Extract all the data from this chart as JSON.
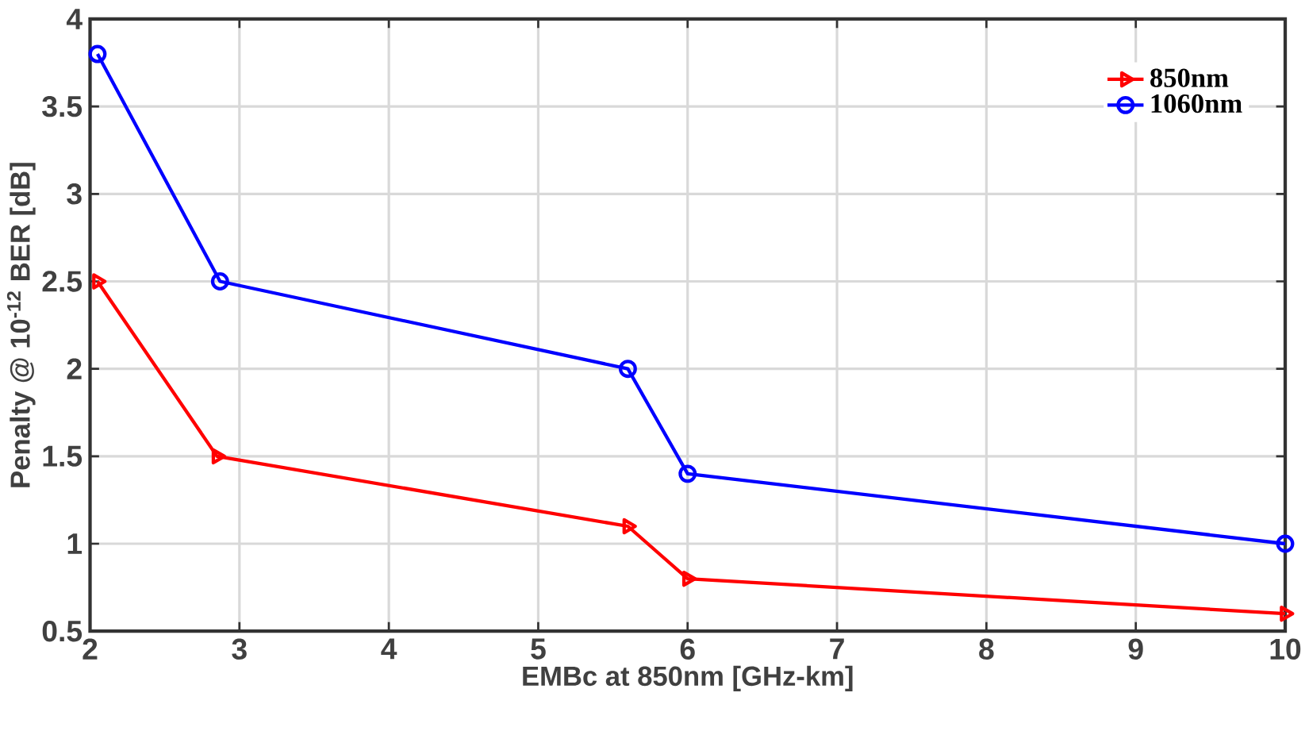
{
  "chart_data": {
    "type": "line",
    "xlabel": "EMBc at 850nm [GHz-km]",
    "ylabel": "Penalty @ 10$^{-12}$ BER [dB]",
    "xlim": [
      2,
      10
    ],
    "ylim": [
      0.5,
      4
    ],
    "xticks": [
      2,
      3,
      4,
      5,
      6,
      7,
      8,
      9,
      10
    ],
    "yticks": [
      0.5,
      1,
      1.5,
      2,
      2.5,
      3,
      3.5,
      4
    ],
    "grid": true,
    "legend": "top right",
    "line_style": "solid",
    "series": [
      {
        "name": "850nm",
        "color": "#ff0000",
        "marker": "triangle",
        "x": [
          2.05,
          2.85,
          5.6,
          6.0,
          10
        ],
        "values": [
          2.5,
          1.5,
          1.1,
          0.8,
          0.6
        ]
      },
      {
        "name": "1060nm",
        "color": "#0000ff",
        "marker": "circle",
        "x": [
          2.05,
          2.87,
          5.6,
          6.0,
          10
        ],
        "values": [
          3.8,
          2.5,
          2.0,
          1.4,
          1.0
        ]
      }
    ]
  }
}
